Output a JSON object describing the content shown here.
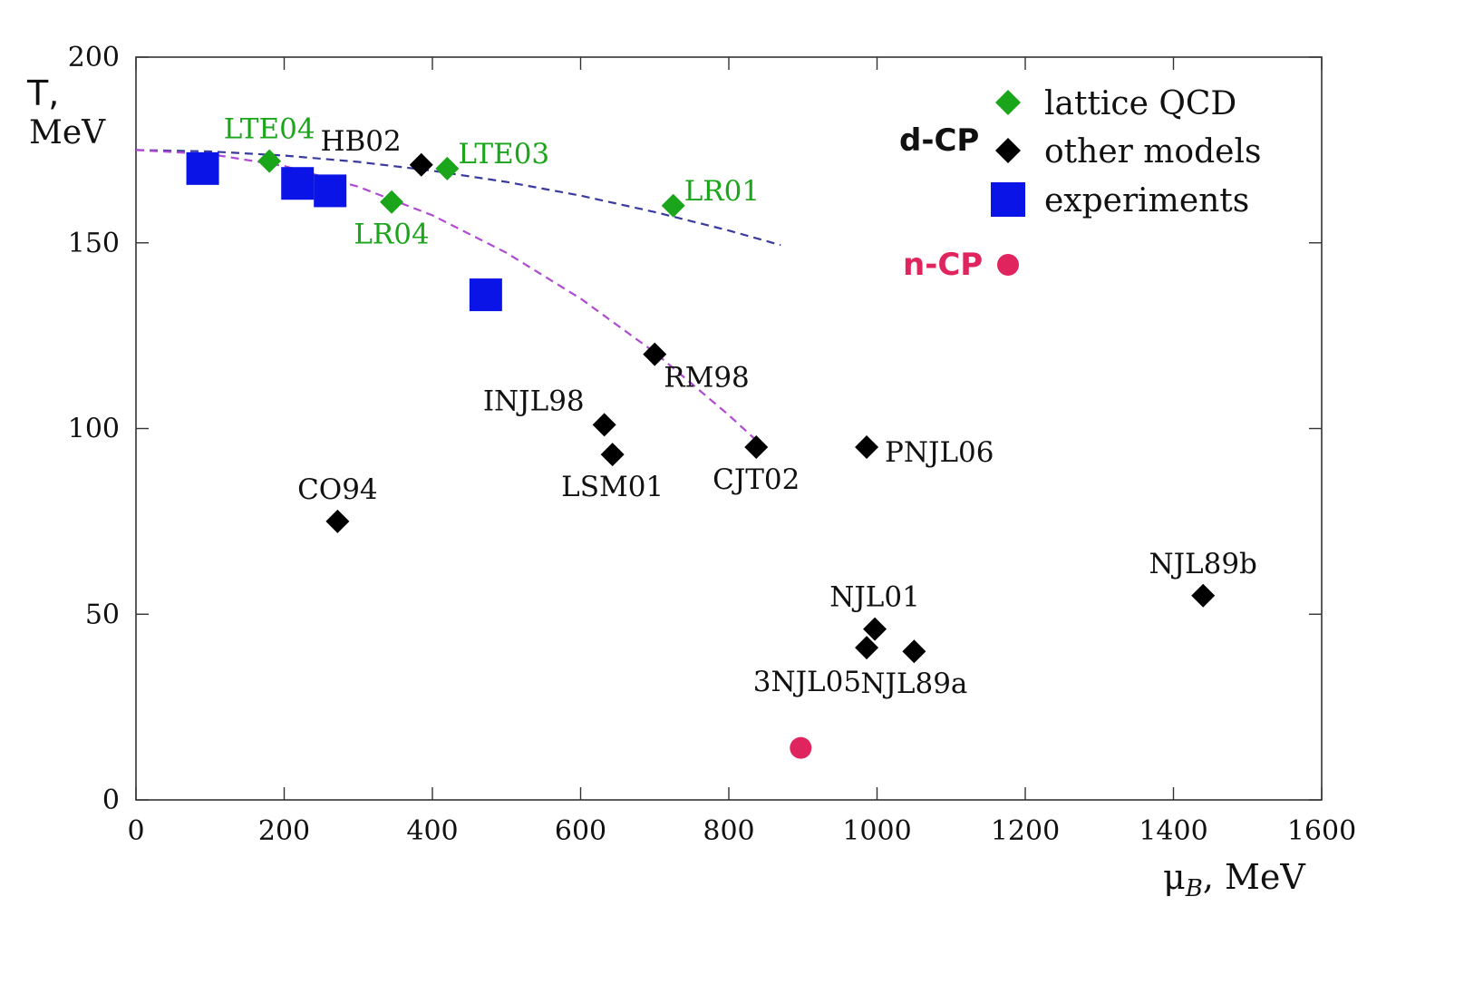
{
  "chart_data": {
    "type": "scatter",
    "xlabel": "μ",
    "xlabel_sub": "B",
    "xlabel_unit": ", MeV",
    "ylabel_line1": "T,",
    "ylabel_line2": "MeV",
    "xlim": [
      0,
      1600
    ],
    "ylim": [
      0,
      200
    ],
    "xticks": [
      0,
      200,
      400,
      600,
      800,
      1000,
      1200,
      1400,
      1600
    ],
    "yticks": [
      0,
      50,
      100,
      150,
      200
    ],
    "colors": {
      "lattice": "#1aa51a",
      "models": "#000000",
      "experiments": "#0a14e6",
      "ncp": "#e0245e",
      "curve_blue": "#3a3a9e",
      "curve_purple": "#b04ad0"
    },
    "series": [
      {
        "name": "lattice QCD",
        "marker": "diamond",
        "color": "#1aa51a",
        "points": [
          {
            "label": "LTE04",
            "x": 180,
            "y": 172,
            "label_pos": "above"
          },
          {
            "label": "LR04",
            "x": 345,
            "y": 161,
            "label_pos": "below"
          },
          {
            "label": "LTE03",
            "x": 420,
            "y": 170,
            "label_pos": "right-up"
          },
          {
            "label": "LR01",
            "x": 725,
            "y": 160,
            "label_pos": "right-up"
          }
        ]
      },
      {
        "name": "other models",
        "marker": "diamond",
        "color": "#000000",
        "points": [
          {
            "label": "HB02",
            "x": 385,
            "y": 171,
            "label_pos": "above-left"
          },
          {
            "label": "CO94",
            "x": 272,
            "y": 75,
            "label_pos": "above"
          },
          {
            "label": "INJL98",
            "x": 632,
            "y": 101,
            "label_pos": "above-left"
          },
          {
            "label": "LSM01",
            "x": 643,
            "y": 93,
            "label_pos": "below"
          },
          {
            "label": "RM98",
            "x": 700,
            "y": 120,
            "label_pos": "below-right"
          },
          {
            "label": "CJT02",
            "x": 837,
            "y": 95,
            "label_pos": "below"
          },
          {
            "label": "PNJL06",
            "x": 986,
            "y": 95,
            "label_pos": "right"
          },
          {
            "label": "NJL01",
            "x": 997,
            "y": 46,
            "label_pos": "above"
          },
          {
            "label": "3NJL05",
            "x": 986,
            "y": 41,
            "label_pos": "below-left"
          },
          {
            "label": "NJL89a",
            "x": 1050,
            "y": 40,
            "label_pos": "below"
          },
          {
            "label": "NJL89b",
            "x": 1440,
            "y": 55,
            "label_pos": "above"
          }
        ]
      },
      {
        "name": "experiments",
        "marker": "square",
        "color": "#0a14e6",
        "points": [
          {
            "x": 90,
            "y": 170
          },
          {
            "x": 218,
            "y": 166
          },
          {
            "x": 262,
            "y": 164
          },
          {
            "x": 472,
            "y": 136
          }
        ]
      },
      {
        "name": "n-CP",
        "marker": "circle",
        "color": "#e0245e",
        "points": [
          {
            "x": 897,
            "y": 14
          }
        ]
      }
    ],
    "curves": [
      {
        "name": "blue-dashed",
        "color": "#3a3a9e",
        "points": [
          [
            0,
            175
          ],
          [
            100,
            174.6
          ],
          [
            200,
            173.5
          ],
          [
            300,
            171.8
          ],
          [
            400,
            169.4
          ],
          [
            500,
            166.4
          ],
          [
            600,
            162.7
          ],
          [
            700,
            158.3
          ],
          [
            800,
            153.3
          ],
          [
            870,
            149.4
          ]
        ]
      },
      {
        "name": "purple-dashed",
        "color": "#b04ad0",
        "points": [
          [
            0,
            175
          ],
          [
            100,
            173.9
          ],
          [
            200,
            170.7
          ],
          [
            300,
            165.1
          ],
          [
            400,
            157.4
          ],
          [
            500,
            147.3
          ],
          [
            600,
            135
          ],
          [
            700,
            120.5
          ],
          [
            800,
            103.6
          ],
          [
            840,
            96.3
          ]
        ]
      }
    ],
    "legend": {
      "position": "top-right",
      "group_label_dcp": "d-CP",
      "group_label_ncp": "n-CP",
      "entries": [
        {
          "label": "lattice QCD",
          "marker": "diamond",
          "color": "#1aa51a"
        },
        {
          "label": "other models",
          "marker": "diamond",
          "color": "#000000"
        },
        {
          "label": "experiments",
          "marker": "square",
          "color": "#0a14e6"
        }
      ]
    }
  }
}
